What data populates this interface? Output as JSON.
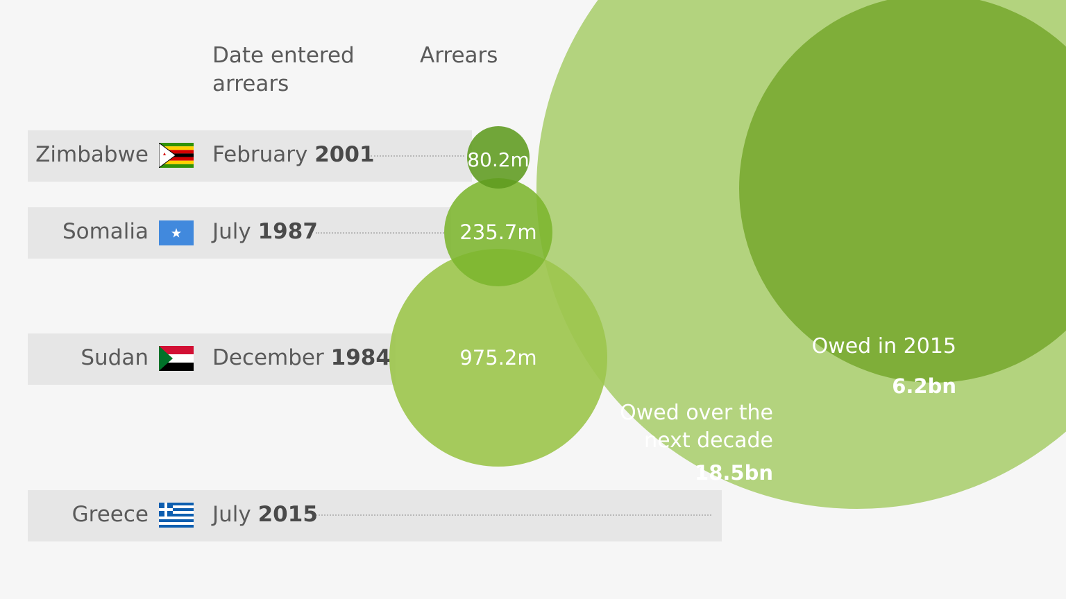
{
  "chart_data": {
    "type": "bubble",
    "headers": {
      "date": "Date entered arrears",
      "value": "Arrears"
    },
    "rows": [
      {
        "country": "Zimbabwe",
        "date_month": "February",
        "date_year": "2001",
        "arrears_label": "80.2m",
        "arrears_m": 80.2,
        "flag": "zimbabwe-flag"
      },
      {
        "country": "Somalia",
        "date_month": "July",
        "date_year": "1987",
        "arrears_label": "235.7m",
        "arrears_m": 235.7,
        "flag": "somalia-flag"
      },
      {
        "country": "Sudan",
        "date_month": "December",
        "date_year": "1984",
        "arrears_label": "975.2m",
        "arrears_m": 975.2,
        "flag": "sudan-flag"
      },
      {
        "country": "Greece",
        "date_month": "July",
        "date_year": "2015",
        "flag": "greece-flag"
      }
    ],
    "greece": {
      "decade": {
        "label_line1": "Owed over the",
        "label_line2": "next decade",
        "value_label": "18.5bn",
        "value_bn": 18.5
      },
      "in2015": {
        "label": "Owed in 2015",
        "value_label": "6.2bn",
        "value_bn": 6.2
      }
    },
    "colors": {
      "decade": "#b3d37e",
      "in2015": "#7fae39",
      "zimbabwe": "#5e9b1f",
      "somalia": "#7cb52e",
      "sudan": "#9dc64e",
      "background": "#f6f6f6",
      "band": "#e6e6e6"
    }
  }
}
